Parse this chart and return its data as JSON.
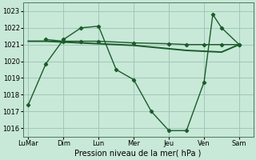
{
  "xlabel": "Pression niveau de la mer( hPa )",
  "background_color": "#c8e8d8",
  "grid_color": "#a0c8b8",
  "line_color": "#1a5c2a",
  "ylim": [
    1015.5,
    1023.5
  ],
  "xtick_labels": [
    "LuMar",
    "Dim",
    "Lun",
    "Mer",
    "Jeu",
    "Ven",
    "Sam"
  ],
  "ytick_values": [
    1016,
    1017,
    1018,
    1019,
    1020,
    1021,
    1022,
    1023
  ],
  "xtick_positions": [
    0,
    1,
    2,
    3,
    4,
    5,
    6
  ],
  "xlim": [
    -0.15,
    6.4
  ],
  "line1_x": [
    0.0,
    0.5,
    1.0,
    1.5,
    2.0,
    2.5,
    3.0,
    3.5,
    4.0,
    4.5,
    5.0,
    5.5,
    6.0
  ],
  "line1_y": [
    1021.2,
    1021.2,
    1021.15,
    1021.1,
    1021.05,
    1021.0,
    1020.95,
    1020.85,
    1020.75,
    1020.65,
    1020.6,
    1020.55,
    1021.0
  ],
  "line2_x": [
    0.5,
    1.0,
    1.5,
    2.0,
    3.0,
    4.0,
    4.5,
    5.0,
    5.5,
    6.0
  ],
  "line2_y": [
    1021.3,
    1021.2,
    1021.2,
    1021.2,
    1021.1,
    1021.05,
    1021.0,
    1021.0,
    1021.0,
    1021.0
  ],
  "line3_x": [
    0.0,
    0.5,
    1.0,
    1.5,
    2.0,
    2.5,
    3.0,
    3.5,
    4.0,
    4.5,
    5.0,
    5.25,
    5.5,
    6.0
  ],
  "line3_y": [
    1017.4,
    1019.85,
    1021.3,
    1022.0,
    1022.1,
    1019.5,
    1018.9,
    1017.0,
    1015.85,
    1015.85,
    1018.75,
    1022.8,
    1022.0,
    1021.0
  ]
}
